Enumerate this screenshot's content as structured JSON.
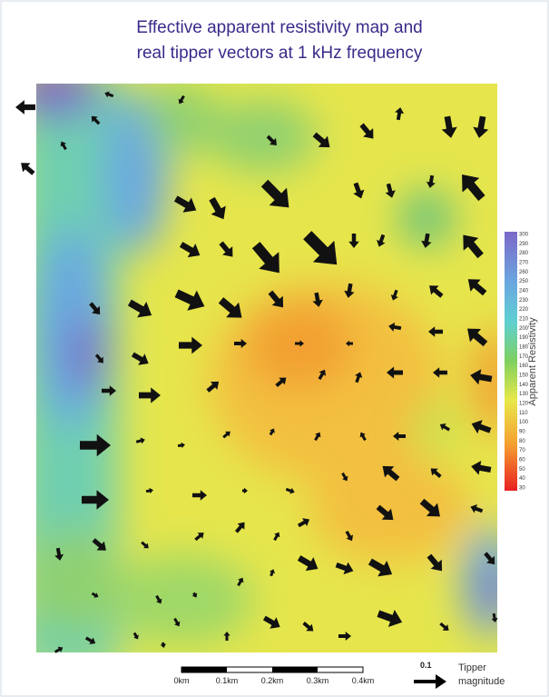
{
  "title": [
    "Effective apparent resistivity map and",
    "real tipper vectors at 1 kHz frequency"
  ],
  "colorbar": {
    "label": "Apparent Resistivity",
    "ticks": [
      300,
      290,
      280,
      270,
      260,
      250,
      240,
      230,
      220,
      210,
      200,
      190,
      180,
      170,
      160,
      150,
      140,
      130,
      120,
      110,
      100,
      90,
      80,
      70,
      60,
      50,
      40,
      30
    ]
  },
  "scale_bar": {
    "labels": [
      "0km",
      "0.1km",
      "0.2km",
      "0.3km",
      "0.4km"
    ]
  },
  "tipper_legend": {
    "value": "0.1",
    "label": [
      "Tipper",
      "magnitude"
    ]
  }
}
